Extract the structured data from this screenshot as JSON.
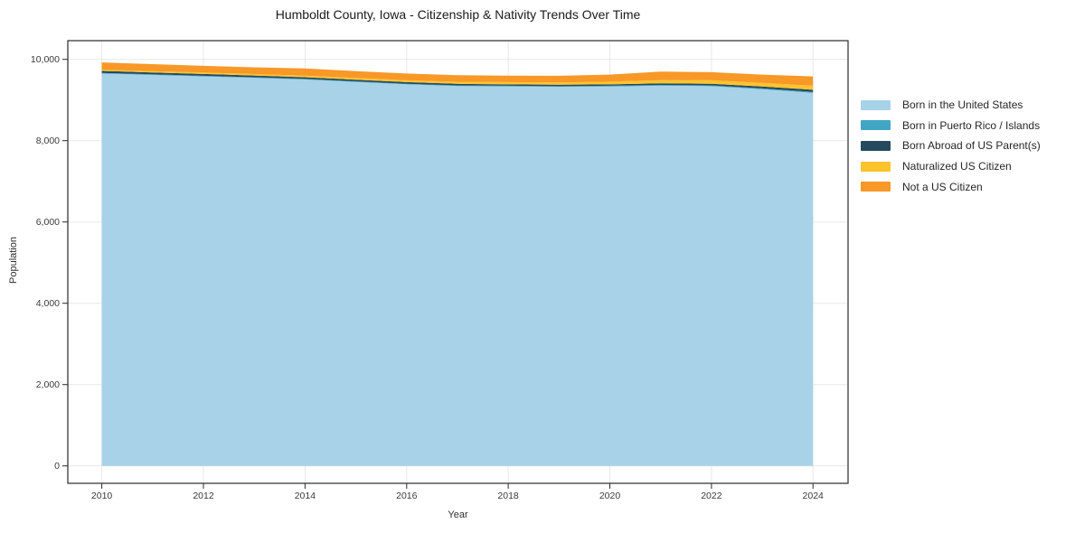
{
  "chart_data": {
    "type": "area",
    "stacked": true,
    "title": "Humboldt County, Iowa - Citizenship & Nativity Trends Over Time",
    "xlabel": "Year",
    "ylabel": "Population",
    "x": [
      2010,
      2011,
      2012,
      2013,
      2014,
      2015,
      2016,
      2017,
      2018,
      2019,
      2020,
      2021,
      2022,
      2023,
      2024
    ],
    "series": [
      {
        "name": "Born in the United States",
        "color": "#a8d2e8",
        "values": [
          9650,
          9615,
          9580,
          9545,
          9505,
          9445,
          9385,
          9345,
          9335,
          9325,
          9330,
          9350,
          9340,
          9265,
          9175
        ]
      },
      {
        "name": "Born in Puerto Rico / Islands",
        "color": "#41a6c4",
        "values": [
          15,
          15,
          15,
          15,
          15,
          15,
          15,
          15,
          15,
          15,
          20,
          20,
          20,
          20,
          25
        ]
      },
      {
        "name": "Born Abroad of US Parent(s)",
        "color": "#25495e",
        "values": [
          50,
          48,
          45,
          42,
          40,
          40,
          40,
          38,
          35,
          35,
          35,
          38,
          40,
          45,
          50
        ]
      },
      {
        "name": "Naturalized US Citizen",
        "color": "#fcc32d",
        "values": [
          30,
          32,
          35,
          35,
          40,
          42,
          45,
          50,
          55,
          58,
          65,
          80,
          85,
          90,
          100
        ]
      },
      {
        "name": "Not a US Citizen",
        "color": "#f89827",
        "values": [
          180,
          172,
          165,
          168,
          175,
          170,
          165,
          162,
          158,
          162,
          175,
          210,
          200,
          205,
          230
        ]
      }
    ],
    "x_ticks": {
      "values": [
        2010,
        2012,
        2014,
        2016,
        2018,
        2020,
        2022,
        2024
      ],
      "labels": [
        "2010",
        "2012",
        "2014",
        "2016",
        "2018",
        "2020",
        "2022",
        "2024"
      ]
    },
    "y_ticks": {
      "values": [
        0,
        2000,
        4000,
        6000,
        8000,
        10000
      ],
      "labels": [
        "0",
        "2,000",
        "4,000",
        "6,000",
        "8,000",
        "10,000"
      ]
    },
    "xlim": [
      2009.33,
      2024.69
    ],
    "ylim": [
      -430,
      10460
    ],
    "grid": true,
    "legend_position": "right",
    "colors": {
      "grid": "#e8e8e8",
      "spine": "#2a2a2a",
      "tick_text": "#3a3a3a",
      "background": "#ffffff"
    }
  }
}
